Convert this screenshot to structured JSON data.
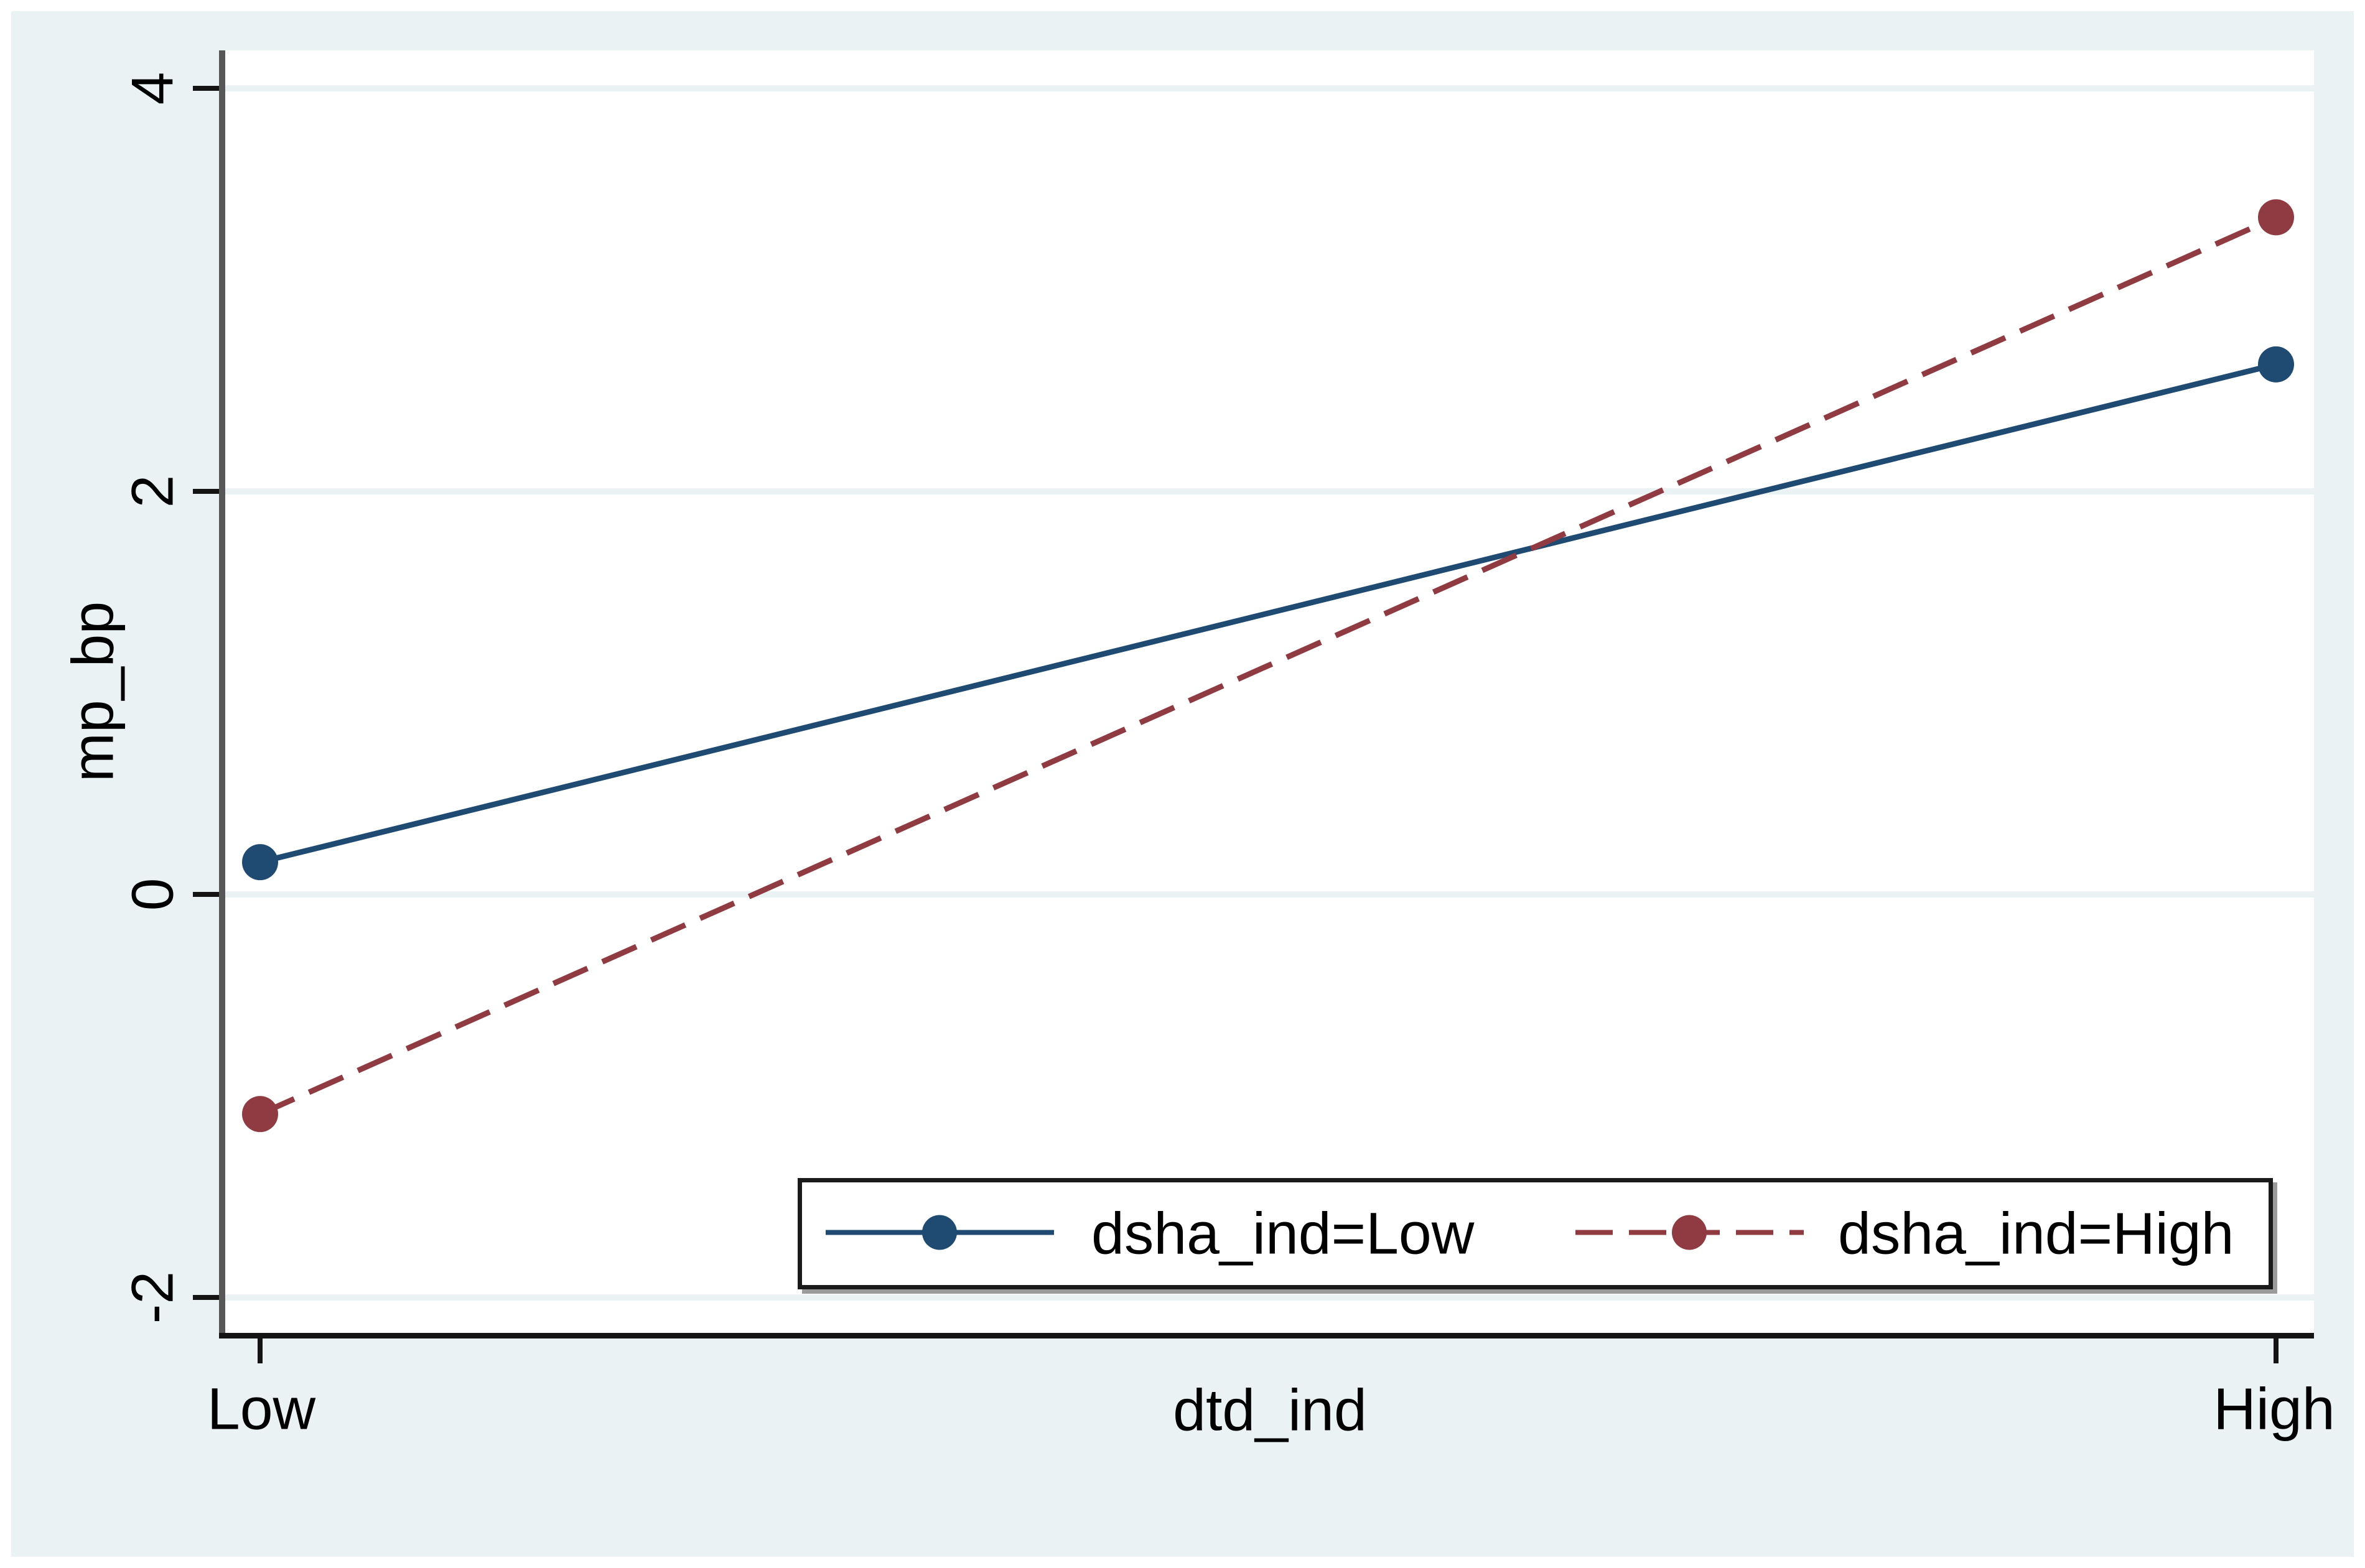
{
  "chart_data": {
    "type": "line",
    "title": "",
    "xlabel": "dtd_ind",
    "ylabel": "mp_bp",
    "categories": [
      "Low",
      "High"
    ],
    "y_tick_values": [
      4,
      2,
      0,
      -2
    ],
    "y_tick_labels": [
      "4",
      "2",
      "0",
      "-2"
    ],
    "ylim": [
      -2.18,
      4.19
    ],
    "grid": true,
    "legend_position": "bottom-inside-box",
    "series": [
      {
        "name": "dsha_ind=Low",
        "style": "solid",
        "marker": "circle",
        "color": "#1f4a72",
        "values": [
          0.16,
          2.63
        ]
      },
      {
        "name": "dsha_ind=High",
        "style": "dashed",
        "marker": "circle",
        "color": "#903b42",
        "values": [
          -1.09,
          3.36
        ]
      }
    ]
  },
  "axes": {
    "ylabel": "mp_bp",
    "xlabel": "dtd_ind",
    "x_tick_labels": [
      "Low",
      "High"
    ],
    "y_tick_labels": [
      "4",
      "2",
      "0",
      "-2"
    ]
  },
  "legend": {
    "entries": [
      {
        "label": "dsha_ind=Low"
      },
      {
        "label": "dsha_ind=High"
      }
    ]
  },
  "colors": {
    "figure_background": "#eaf2f3",
    "plot_background": "#ffffff",
    "gridline": "#eaf2f3",
    "y_axis_line": "#575757",
    "x_axis_line": "#141414",
    "series_low": "#1f4a72",
    "series_high": "#903b42",
    "text": "#000000",
    "legend_border": "#1a1a1a",
    "legend_shadow": "#9b9b9b"
  }
}
